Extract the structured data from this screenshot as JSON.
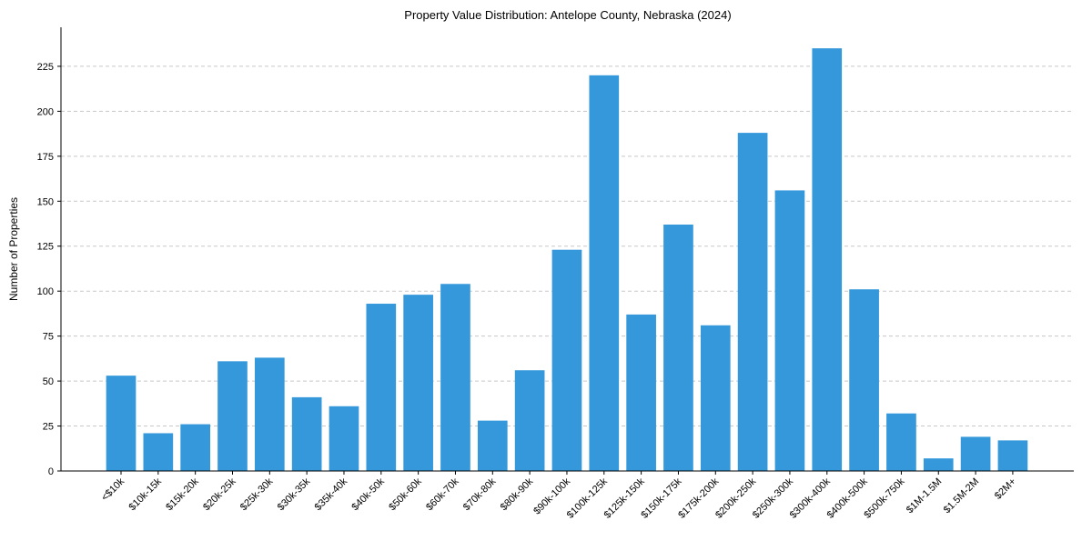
{
  "chart_data": {
    "type": "bar",
    "title": "Property Value Distribution: Antelope County, Nebraska (2024)",
    "xlabel": "",
    "ylabel": "Number of Properties",
    "ylim": [
      0,
      246.7
    ],
    "yticks": [
      0,
      25,
      50,
      75,
      100,
      125,
      150,
      175,
      200,
      225
    ],
    "grid": "y-dashed",
    "bar_color": "#3498db",
    "categories": [
      "<$10k",
      "$10k-15k",
      "$15k-20k",
      "$20k-25k",
      "$25k-30k",
      "$30k-35k",
      "$35k-40k",
      "$40k-50k",
      "$50k-60k",
      "$60k-70k",
      "$70k-80k",
      "$80k-90k",
      "$90k-100k",
      "$100k-125k",
      "$125k-150k",
      "$150k-175k",
      "$175k-200k",
      "$200k-250k",
      "$250k-300k",
      "$300k-400k",
      "$400k-500k",
      "$500k-750k",
      "$1M-1.5M",
      "$1.5M-2M",
      "$2M+"
    ],
    "values": [
      53,
      21,
      26,
      61,
      63,
      41,
      36,
      93,
      98,
      104,
      28,
      56,
      123,
      220,
      87,
      137,
      81,
      188,
      156,
      235,
      101,
      32,
      7,
      19,
      17
    ]
  }
}
